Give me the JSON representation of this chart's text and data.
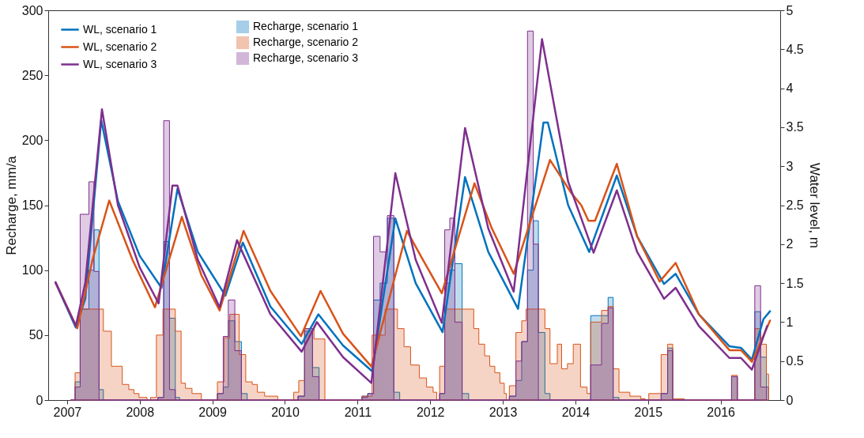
{
  "chart_data": {
    "type": "line",
    "ylabel": "Recharge, mm/a",
    "y2label": "Water level, m",
    "xlim": [
      2006.74,
      2016.82
    ],
    "xticks": [
      2007,
      2008,
      2009,
      2010,
      2011,
      2012,
      2013,
      2014,
      2015,
      2016
    ],
    "ylim": [
      0,
      300
    ],
    "yticks": [
      0,
      50,
      100,
      150,
      200,
      250,
      300
    ],
    "grid": false,
    "y2lim": [
      0,
      5
    ],
    "y2ticks": [
      0,
      0.5,
      1,
      1.5,
      2,
      2.5,
      3,
      3.5,
      4,
      4.5,
      5
    ],
    "legend": "top left",
    "series": [
      {
        "name": "WL, scenario 1",
        "color": "#0072bd",
        "axis": "y2",
        "x": [
          2006.84,
          2007.12,
          2007.25,
          2007.47,
          2007.7,
          2008.0,
          2008.3,
          2008.52,
          2008.8,
          2009.18,
          2009.42,
          2009.8,
          2010.23,
          2010.46,
          2010.8,
          2011.2,
          2011.52,
          2011.8,
          2012.17,
          2012.48,
          2012.8,
          2013.21,
          2013.56,
          2013.62,
          2013.9,
          2014.19,
          2014.57,
          2014.85,
          2015.22,
          2015.38,
          2015.7,
          2016.12,
          2016.28,
          2016.43,
          2016.59,
          2016.68
        ],
        "values": [
          1.51,
          0.93,
          1.3,
          3.59,
          2.55,
          1.85,
          1.44,
          2.71,
          1.9,
          1.34,
          2.02,
          1.2,
          0.72,
          1.1,
          0.7,
          0.37,
          2.33,
          1.5,
          0.87,
          2.86,
          1.9,
          1.17,
          3.56,
          3.56,
          2.5,
          1.9,
          2.88,
          2.1,
          1.49,
          1.62,
          1.1,
          0.69,
          0.67,
          0.52,
          1.04,
          1.14
        ]
      },
      {
        "name": "WL, scenario 2",
        "color": "#d95319",
        "axis": "y2",
        "x": [
          2006.84,
          2007.14,
          2007.35,
          2007.58,
          2007.9,
          2008.21,
          2008.58,
          2008.85,
          2009.1,
          2009.43,
          2009.8,
          2010.22,
          2010.49,
          2010.8,
          2011.19,
          2011.68,
          2011.9,
          2012.16,
          2012.61,
          2012.85,
          2013.15,
          2013.65,
          2013.94,
          2014.08,
          2014.18,
          2014.27,
          2014.57,
          2014.85,
          2015.16,
          2015.38,
          2015.7,
          2016.12,
          2016.28,
          2016.43,
          2016.68
        ],
        "values": [
          1.51,
          0.92,
          1.8,
          2.56,
          1.8,
          1.19,
          2.35,
          1.6,
          1.15,
          2.17,
          1.4,
          0.82,
          1.4,
          0.85,
          0.43,
          2.17,
          1.8,
          1.37,
          2.78,
          2.2,
          1.62,
          3.08,
          2.66,
          2.5,
          2.3,
          2.3,
          3.03,
          2.1,
          1.52,
          1.76,
          1.1,
          0.64,
          0.64,
          0.49,
          1.02
        ]
      },
      {
        "name": "WL, scenario 3",
        "color": "#7e2f8e",
        "axis": "y2",
        "x": [
          2006.84,
          2007.12,
          2007.25,
          2007.48,
          2007.7,
          2008.0,
          2008.26,
          2008.45,
          2008.52,
          2008.8,
          2009.1,
          2009.34,
          2009.8,
          2010.23,
          2010.44,
          2010.8,
          2011.19,
          2011.52,
          2011.8,
          2012.16,
          2012.48,
          2012.8,
          2013.15,
          2013.54,
          2013.9,
          2014.25,
          2014.57,
          2014.85,
          2015.22,
          2015.38,
          2015.7,
          2016.12,
          2016.28,
          2016.43,
          2016.64
        ],
        "values": [
          1.51,
          0.95,
          1.5,
          3.73,
          2.5,
          1.7,
          1.24,
          2.75,
          2.75,
          1.8,
          1.19,
          2.05,
          1.1,
          0.62,
          1.0,
          0.55,
          0.22,
          2.91,
          1.8,
          0.99,
          3.49,
          2.2,
          1.39,
          4.63,
          2.8,
          1.89,
          2.69,
          1.9,
          1.3,
          1.44,
          0.95,
          0.54,
          0.54,
          0.39,
          0.95
        ]
      },
      {
        "name": "Recharge, scenario 1",
        "color": "#0072bd",
        "type": "area",
        "x": [
          2007.05,
          2007.11,
          2007.18,
          2007.3,
          2007.37,
          2007.44,
          2007.5,
          2008.25,
          2008.33,
          2008.41,
          2008.49,
          2008.55,
          2009.07,
          2009.15,
          2009.22,
          2009.31,
          2009.4,
          2009.48,
          2010.18,
          2010.27,
          2010.38,
          2010.47,
          2011.06,
          2011.14,
          2011.22,
          2011.31,
          2011.41,
          2011.5,
          2011.58,
          2012.13,
          2012.2,
          2012.27,
          2012.34,
          2012.44,
          2012.53,
          2013.09,
          2013.18,
          2013.26,
          2013.34,
          2013.42,
          2013.49,
          2013.58,
          2013.65,
          2014.21,
          2014.36,
          2014.45,
          2014.52,
          2014.6,
          2015.18,
          2015.27,
          2015.34,
          2016.15,
          2016.23,
          2016.47,
          2016.55,
          2016.63,
          2016.66
        ],
        "values": [
          0,
          14,
          70,
          100,
          131,
          8,
          0,
          2,
          122,
          63,
          2,
          0,
          5,
          10,
          61,
          45,
          5,
          0,
          3,
          53,
          25,
          0,
          3,
          5,
          77,
          90,
          140,
          6,
          0,
          5,
          90,
          100,
          105,
          5,
          0,
          3,
          15,
          45,
          100,
          138,
          52,
          5,
          0,
          65,
          65,
          79,
          2,
          0,
          5,
          40,
          0,
          18,
          0,
          68,
          33,
          10,
          0
        ]
      },
      {
        "name": "Recharge, scenario 2",
        "color": "#d95319",
        "type": "area",
        "x": [
          2007.05,
          2007.11,
          2007.18,
          2007.5,
          2007.61,
          2007.76,
          2007.85,
          2007.92,
          2007.99,
          2008.1,
          2008.15,
          2008.23,
          2008.32,
          2008.49,
          2008.57,
          2008.63,
          2008.72,
          2008.85,
          2009.07,
          2009.16,
          2009.24,
          2009.37,
          2009.46,
          2009.55,
          2009.62,
          2009.72,
          2009.9,
          2010.12,
          2010.19,
          2010.27,
          2010.4,
          2010.55,
          2011.06,
          2011.2,
          2011.38,
          2011.55,
          2011.64,
          2011.73,
          2011.85,
          2011.95,
          2012.04,
          2012.09,
          2012.13,
          2012.2,
          2012.6,
          2012.67,
          2012.75,
          2012.82,
          2012.89,
          2012.96,
          2013.02,
          2013.05,
          2013.09,
          2013.18,
          2013.26,
          2013.32,
          2013.58,
          2013.65,
          2013.75,
          2013.81,
          2013.89,
          2013.97,
          2014.07,
          2014.16,
          2014.21,
          2014.36,
          2014.45,
          2014.52,
          2014.6,
          2014.75,
          2014.9,
          2014.96,
          2015.01,
          2015.18,
          2015.27,
          2015.34,
          2015.5,
          2016.15,
          2016.23,
          2016.47,
          2016.55,
          2016.63,
          2016.66
        ],
        "values": [
          0,
          21,
          70,
          53,
          26,
          12,
          8,
          5,
          2,
          0,
          2,
          50,
          70,
          53,
          13,
          9,
          5,
          0,
          14,
          48,
          66,
          35,
          14,
          12,
          6,
          3,
          0,
          6,
          15,
          55,
          47,
          0,
          3,
          50,
          70,
          55,
          41,
          27,
          17,
          10,
          6,
          0,
          26,
          70,
          55,
          43,
          34,
          26,
          21,
          13,
          5,
          0,
          11,
          52,
          61,
          70,
          55,
          28,
          43,
          24,
          28,
          43,
          10,
          5,
          60,
          69,
          72,
          24,
          6,
          3,
          1,
          0,
          5,
          35,
          43,
          1,
          0,
          19,
          0,
          55,
          43,
          20,
          0
        ]
      },
      {
        "name": "Recharge, scenario 3",
        "color": "#7e2f8e",
        "type": "area",
        "x": [
          2007.05,
          2007.11,
          2007.18,
          2007.3,
          2007.37,
          2007.44,
          2008.25,
          2008.33,
          2008.41,
          2008.49,
          2009.07,
          2009.15,
          2009.22,
          2009.31,
          2009.4,
          2010.18,
          2010.27,
          2010.38,
          2010.47,
          2011.06,
          2011.14,
          2011.22,
          2011.31,
          2011.41,
          2011.5,
          2012.13,
          2012.2,
          2012.27,
          2012.34,
          2012.44,
          2013.09,
          2013.18,
          2013.26,
          2013.34,
          2013.42,
          2013.49,
          2014.21,
          2014.36,
          2014.45,
          2014.52,
          2015.18,
          2015.27,
          2015.34,
          2016.15,
          2016.23,
          2016.47,
          2016.55,
          2016.63
        ],
        "values": [
          0,
          10,
          143,
          168,
          99,
          0,
          2,
          215,
          8,
          0,
          5,
          49,
          77,
          38,
          0,
          3,
          55,
          18,
          0,
          2,
          5,
          126,
          114,
          142,
          0,
          5,
          131,
          140,
          60,
          0,
          3,
          30,
          45,
          284,
          120,
          0,
          27,
          59,
          71,
          0,
          5,
          38,
          0,
          18,
          0,
          88,
          10,
          0
        ]
      }
    ]
  }
}
